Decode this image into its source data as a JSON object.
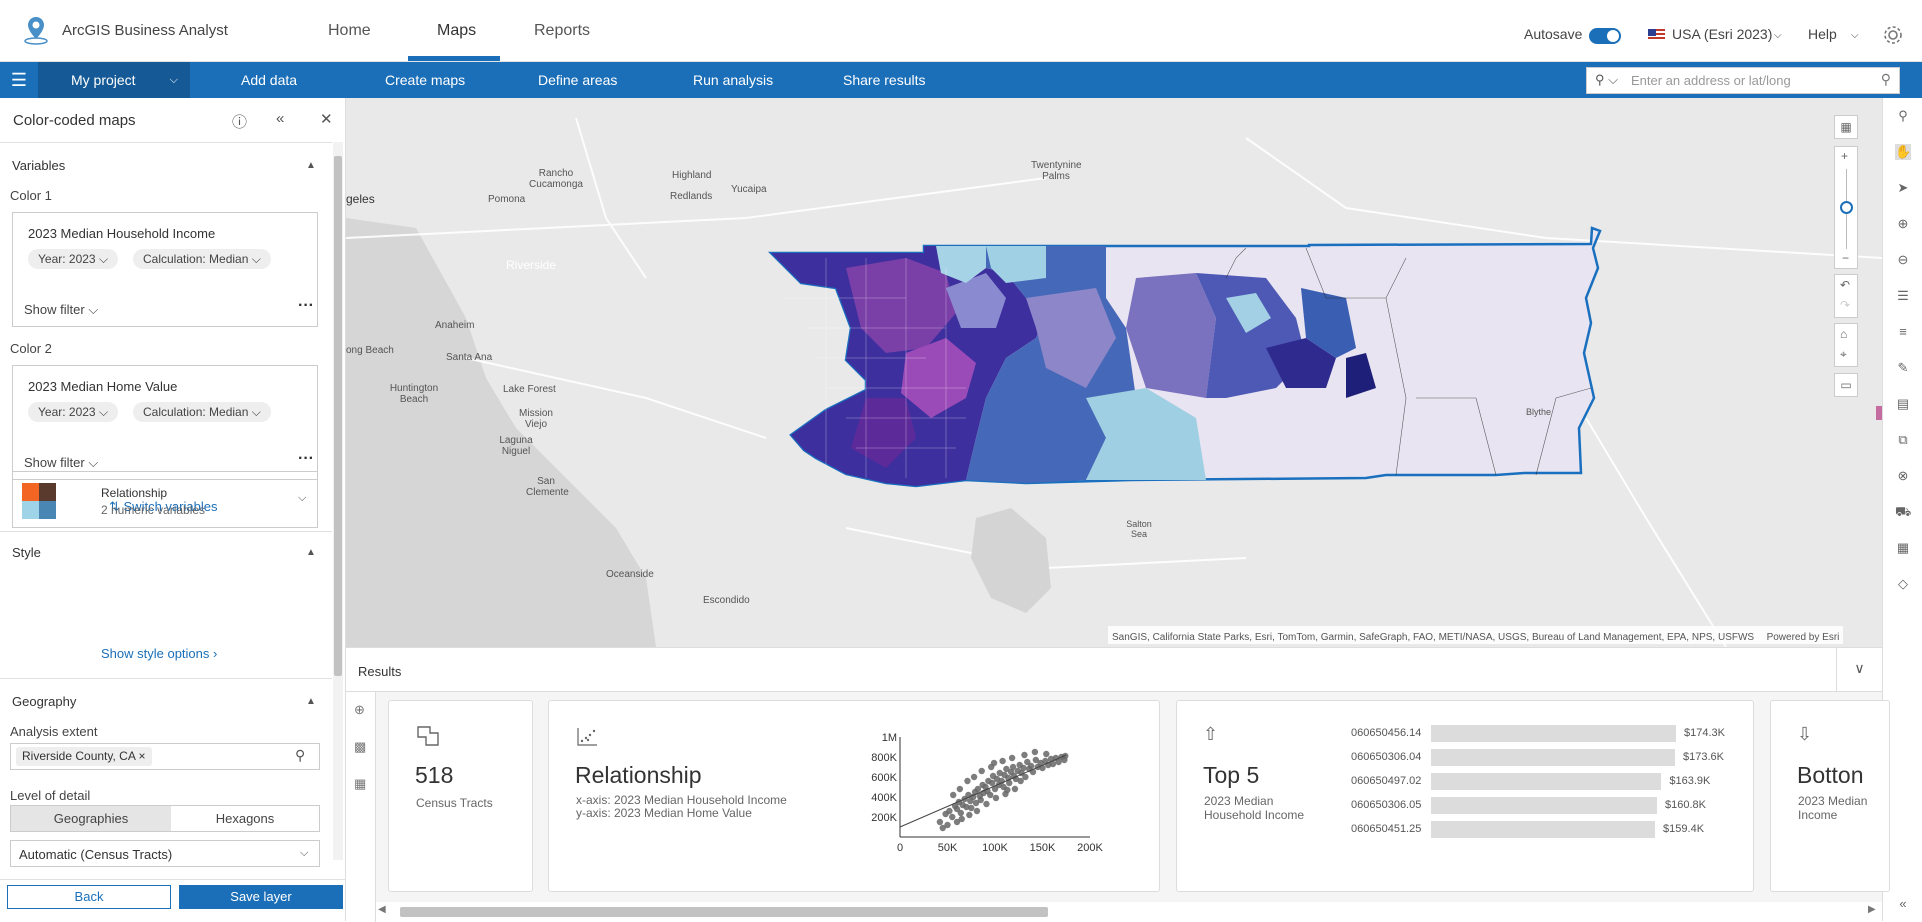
{
  "app": {
    "title": "ArcGIS Business Analyst"
  },
  "nav": {
    "tabs": [
      "Home",
      "Maps",
      "Reports"
    ],
    "active": "Maps"
  },
  "header_right": {
    "autosave_label": "Autosave",
    "autosave_on": true,
    "data_source": "USA (Esri 2023)",
    "help": "Help"
  },
  "toolbar": {
    "project": "My project",
    "items": [
      "Add data",
      "Create maps",
      "Define areas",
      "Run analysis",
      "Share results"
    ],
    "search_placeholder": "Enter an address or lat/long"
  },
  "panel": {
    "title": "Color-coded maps",
    "variables_heading": "Variables",
    "color1_label": "Color 1",
    "color1": {
      "title": "2023 Median Household Income",
      "year_chip": "Year: 2023",
      "calc_chip": "Calculation: Median",
      "show_filter": "Show filter"
    },
    "color2_label": "Color 2",
    "color2": {
      "title": "2023 Median Home Value",
      "year_chip": "Year: 2023",
      "calc_chip": "Calculation: Median",
      "show_filter": "Show filter"
    },
    "switch_variables": "Switch variables",
    "style_heading": "Style",
    "style_name": "Relationship",
    "style_sub": "2 numeric variables",
    "show_style_options": "Show style options",
    "geography_heading": "Geography",
    "analysis_extent_label": "Analysis extent",
    "analysis_extent_value": "Riverside County, CA",
    "level_of_detail_label": "Level of detail",
    "lod_options": [
      "Geographies",
      "Hexagons"
    ],
    "lod_selected": "Geographies",
    "auto_select": "Automatic (Census Tracts)",
    "back": "Back",
    "save": "Save layer"
  },
  "map": {
    "places": [
      {
        "name": "geles"
      },
      {
        "name": "Rancho Cucamonga"
      },
      {
        "name": "Highland"
      },
      {
        "name": "Redlands"
      },
      {
        "name": "Pomona"
      },
      {
        "name": "Yucaipa"
      },
      {
        "name": "Twentynine Palms"
      },
      {
        "name": "Anaheim"
      },
      {
        "name": "ong Beach"
      },
      {
        "name": "Santa Ana"
      },
      {
        "name": "Huntington Beach"
      },
      {
        "name": "Lake Forest"
      },
      {
        "name": "Mission Viejo"
      },
      {
        "name": "Laguna Niguel"
      },
      {
        "name": "San Clemente"
      },
      {
        "name": "Oceanside"
      },
      {
        "name": "Escondido"
      },
      {
        "name": "Salton Sea"
      },
      {
        "name": "Riverside"
      },
      {
        "name": "Blythe"
      }
    ],
    "attribution": "SanGIS, California State Parks, Esri, TomTom, Garmin, SafeGraph, FAO, METI/NASA, USGS, Bureau of Land Management, EPA, NPS, USFWS",
    "powered_by": "Powered by Esri"
  },
  "results": {
    "title": "Results",
    "count_card": {
      "value": "518",
      "label": "Census Tracts"
    },
    "relationship_card": {
      "title": "Relationship",
      "x_axis": "x-axis: 2023 Median Household Income",
      "y_axis": "y-axis: 2023 Median Home Value"
    },
    "top5": {
      "title": "Top 5",
      "subtitle": "2023 Median Household Income",
      "rows": [
        {
          "id": "060650456.14",
          "value": 174.3,
          "label": "$174.3K"
        },
        {
          "id": "060650306.04",
          "value": 173.6,
          "label": "$173.6K"
        },
        {
          "id": "060650497.02",
          "value": 163.9,
          "label": "$163.9K"
        },
        {
          "id": "060650306.05",
          "value": 160.8,
          "label": "$160.8K"
        },
        {
          "id": "060650451.25",
          "value": 159.4,
          "label": "$159.4K"
        }
      ]
    },
    "bottom_card": {
      "title": "Botton",
      "subtitle": "2023 Median Income"
    }
  },
  "chart_data": {
    "type": "scatter",
    "title": "",
    "xlabel": "",
    "ylabel": "",
    "xlim": [
      0,
      200000
    ],
    "ylim": [
      0,
      1000000
    ],
    "x_ticks": [
      "0",
      "50K",
      "100K",
      "150K",
      "200K"
    ],
    "y_ticks": [
      "200K",
      "400K",
      "600K",
      "800K",
      "1M"
    ],
    "color": "#666666",
    "points": [
      [
        42000,
        150000
      ],
      [
        48000,
        230000
      ],
      [
        52000,
        260000
      ],
      [
        55000,
        200000
      ],
      [
        58000,
        310000
      ],
      [
        60000,
        280000
      ],
      [
        62000,
        350000
      ],
      [
        64000,
        240000
      ],
      [
        66000,
        320000
      ],
      [
        68000,
        380000
      ],
      [
        70000,
        300000
      ],
      [
        72000,
        420000
      ],
      [
        74000,
        360000
      ],
      [
        75000,
        290000
      ],
      [
        77000,
        400000
      ],
      [
        79000,
        450000
      ],
      [
        80000,
        340000
      ],
      [
        82000,
        480000
      ],
      [
        84000,
        410000
      ],
      [
        85000,
        370000
      ],
      [
        87000,
        520000
      ],
      [
        88000,
        440000
      ],
      [
        90000,
        500000
      ],
      [
        92000,
        460000
      ],
      [
        93000,
        560000
      ],
      [
        95000,
        420000
      ],
      [
        97000,
        540000
      ],
      [
        98000,
        610000
      ],
      [
        100000,
        480000
      ],
      [
        102000,
        580000
      ],
      [
        104000,
        520000
      ],
      [
        105000,
        640000
      ],
      [
        107000,
        560000
      ],
      [
        109000,
        500000
      ],
      [
        110000,
        620000
      ],
      [
        112000,
        680000
      ],
      [
        114000,
        590000
      ],
      [
        115000,
        540000
      ],
      [
        117000,
        650000
      ],
      [
        119000,
        700000
      ],
      [
        120000,
        610000
      ],
      [
        122000,
        580000
      ],
      [
        124000,
        660000
      ],
      [
        126000,
        720000
      ],
      [
        128000,
        640000
      ],
      [
        130000,
        690000
      ],
      [
        132000,
        600000
      ],
      [
        134000,
        750000
      ],
      [
        136000,
        680000
      ],
      [
        138000,
        710000
      ],
      [
        140000,
        650000
      ],
      [
        143000,
        770000
      ],
      [
        145000,
        700000
      ],
      [
        148000,
        740000
      ],
      [
        150000,
        690000
      ],
      [
        153000,
        760000
      ],
      [
        156000,
        720000
      ],
      [
        159000,
        780000
      ],
      [
        161000,
        730000
      ],
      [
        164000,
        790000
      ],
      [
        167000,
        750000
      ],
      [
        170000,
        800000
      ],
      [
        173000,
        770000
      ],
      [
        174000,
        810000
      ],
      [
        56000,
        420000
      ],
      [
        63000,
        480000
      ],
      [
        71000,
        560000
      ],
      [
        86000,
        660000
      ],
      [
        96000,
        700000
      ],
      [
        108000,
        760000
      ],
      [
        118000,
        790000
      ],
      [
        60000,
        150000
      ],
      [
        65000,
        180000
      ],
      [
        73000,
        220000
      ],
      [
        81000,
        260000
      ],
      [
        91000,
        330000
      ],
      [
        101000,
        390000
      ],
      [
        111000,
        430000
      ],
      [
        121000,
        480000
      ],
      [
        50000,
        120000
      ],
      [
        45000,
        90000
      ],
      [
        78000,
        600000
      ],
      [
        99000,
        740000
      ],
      [
        131000,
        820000
      ],
      [
        142000,
        850000
      ],
      [
        154000,
        830000
      ],
      [
        127000,
        560000
      ],
      [
        113000,
        470000
      ]
    ]
  }
}
